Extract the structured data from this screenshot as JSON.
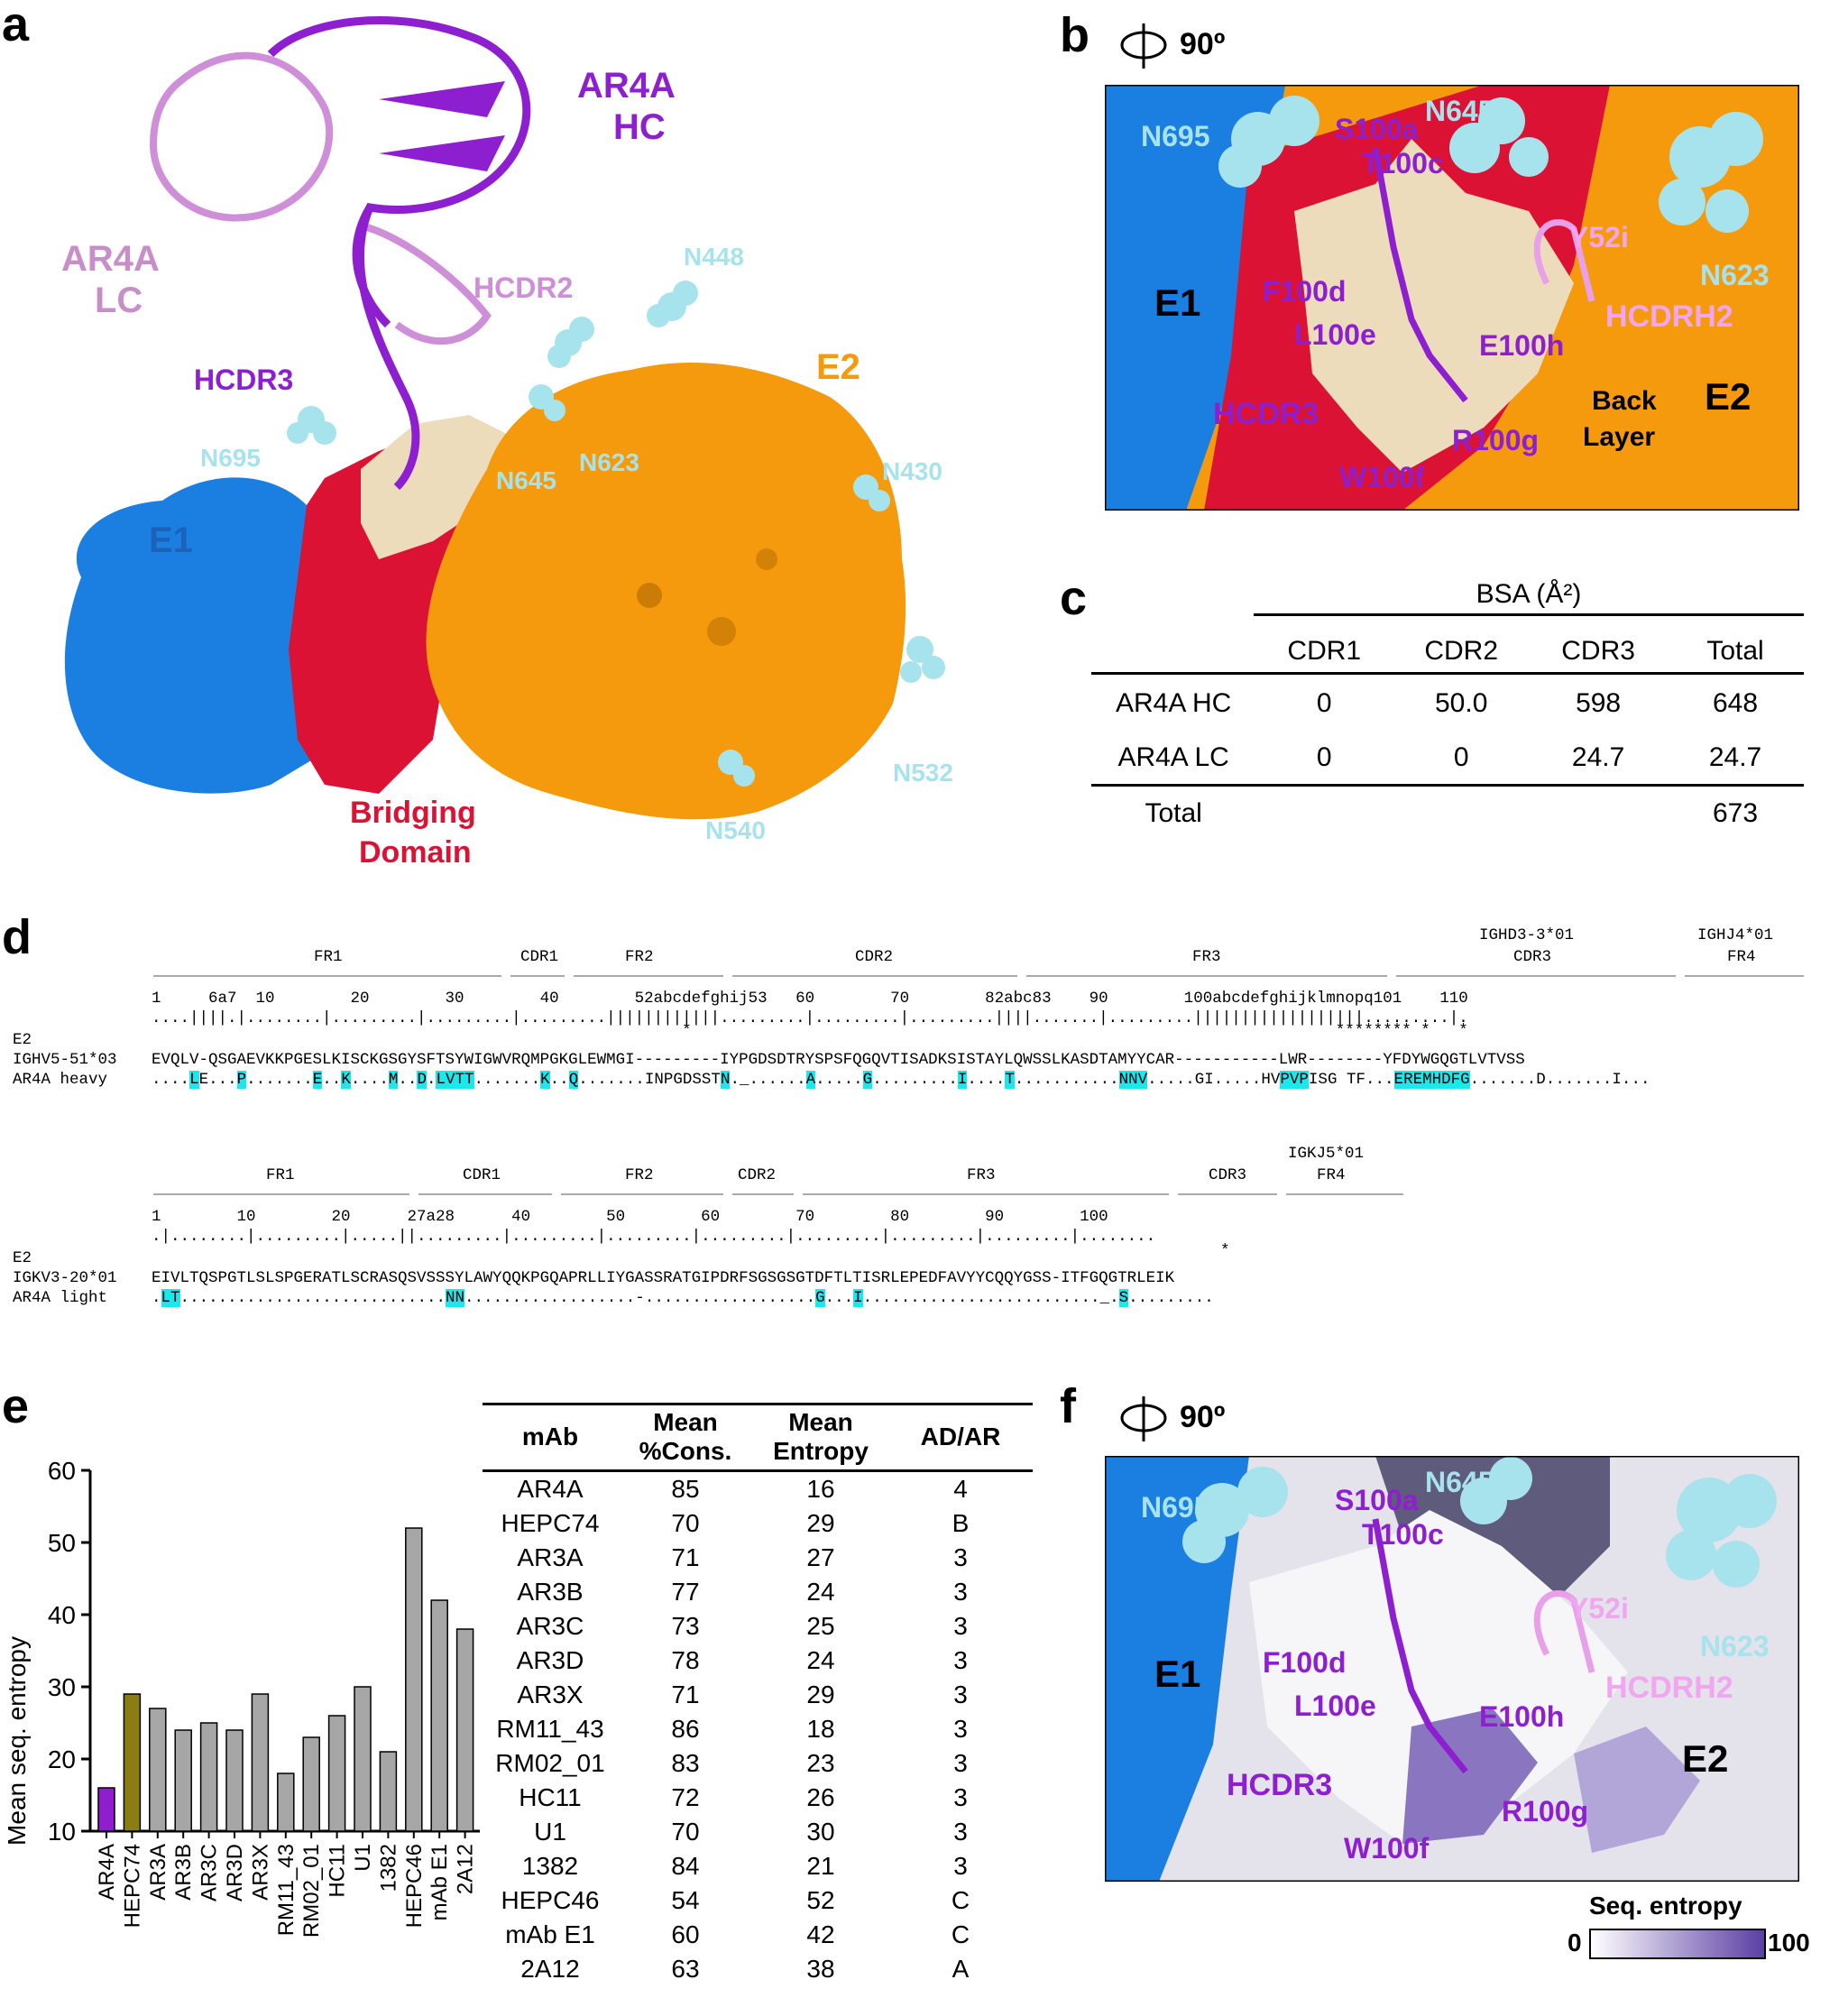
{
  "panels": {
    "a": "a",
    "b": "b",
    "c": "c",
    "d": "d",
    "e": "e",
    "f": "f"
  },
  "panel_a": {
    "labels": {
      "ar4a_hc": "AR4A\nHC",
      "ar4a_lc": "AR4A\nLC",
      "hcdr2": "HCDR2",
      "hcdr3": "HCDR3",
      "n448": "N448",
      "e2": "E2",
      "n695": "N695",
      "n645": "N645",
      "n623": "N623",
      "n430": "N430",
      "e1": "E1",
      "bridging": "Bridging\nDomain",
      "n532": "N532",
      "n540": "N540"
    }
  },
  "panel_b": {
    "rotation": "90º",
    "labels": {
      "n695": "N695",
      "n645": "N645",
      "s100a": "S100a",
      "t100c": "T100c",
      "y52i": "Y52i",
      "n623": "N623",
      "e1": "E1",
      "f100d": "F100d",
      "l100e": "L100e",
      "e100h": "E100h",
      "hcdrh2": "HCDRH2",
      "back_layer": "Back\nLayer",
      "e2": "E2",
      "hcdr3": "HCDR3",
      "r100g": "R100g",
      "w100f": "W100f"
    }
  },
  "panel_c": {
    "group_header": "BSA (Å²)",
    "columns": [
      "",
      "CDR1",
      "CDR2",
      "CDR3",
      "Total"
    ],
    "rows": [
      [
        "AR4A HC",
        "0",
        "50.0",
        "598",
        "648"
      ],
      [
        "AR4A LC",
        "0",
        "0",
        "24.7",
        "24.7"
      ],
      [
        "Total",
        "",
        "",
        "",
        "673"
      ]
    ]
  },
  "panel_d": {
    "heavy": {
      "regions": "                      FR1                   CDR1      FR2          CDR2                   FR3                      CDR3        FR4",
      "ighd": "IGHD3-3*01",
      "ighj": "IGHJ4*01",
      "region_labels": {
        "fr1": "FR1",
        "cdr1": "CDR1",
        "fr2": "FR2",
        "cdr2": "CDR2",
        "fr3": "FR3",
        "cdr3": "CDR3",
        "fr4": "FR4"
      },
      "numbers": "1     6a7  10        20        30        40        52abcdefghij53   60        70        82abc83    90        100abcdefghijklmnopq101    110",
      "dots": "....||||.|........|.........|.........|.........||||||||||||.........|.........|.........||||.......|.........||||||||||||||||||.........|.",
      "marks_e2": "                                                        *                                                                    ******** *   *",
      "row_labels": {
        "e2": "E2",
        "germ": "IGHV5-51*03",
        "ab": "AR4A heavy"
      },
      "germ_seq": "EVQLV-QSGAEVKKPGESLKISCKGSGYSFTSYWIGWVRQMPGKGLEWMGI---------IYPGDSDTRYSPSFQGQVTISADKSISTAYLQWSSLKASDTAMYYCAR-----------LWR--------YFDYWGQGTLVTVSS",
      "ab_seq": "....LE...P.......E..K....M..D.LVTT.......K..Q.......INPGDSSTN._......A.....G.........I....T...........NNV.....GI.....HVPVPISG TF...EREMHDFG.......D.......I..."
    },
    "light": {
      "igkj": "IGKJ5*01",
      "region_labels": {
        "fr1": "FR1",
        "cdr1": "CDR1",
        "fr2": "FR2",
        "cdr2": "CDR2",
        "fr3": "FR3",
        "cdr3": "CDR3",
        "fr4": "FR4"
      },
      "numbers": "1        10        20      27a28      40        50        60        70        80        90        100",
      "dots": ".|........|.........|.....||.........|.........|.........|.........|.........|.........|.........|........",
      "marks_e2": "*",
      "row_labels": {
        "e2": "E2",
        "germ": "IGKV3-20*01",
        "ab": "AR4A light"
      },
      "germ_seq": "EIVLTQSPGTLSLSPGERATLSCRASQSVSSSYLAWYQQKPGQAPRLLIYGASSRATGIPDRFSGSGSGTDFTLTISRLEPEDFAVYYCQQYGSS-ITFGQGTRLEIK",
      "ab_seq": ".LT............................NN..................-..................G...I........................._.S........."
    }
  },
  "panel_e": {
    "chart_data": {
      "type": "bar",
      "ylabel": "Mean seq. entropy",
      "ylim": [
        10,
        60
      ],
      "yticks": [
        10,
        20,
        30,
        40,
        50,
        60
      ],
      "categories": [
        "AR4A",
        "HEPC74",
        "AR3A",
        "AR3B",
        "AR3C",
        "AR3D",
        "AR3X",
        "RM11_43",
        "RM02_01",
        "HC11",
        "U1",
        "1382",
        "HEPC46",
        "mAb E1",
        "2A12"
      ],
      "values": [
        16,
        29,
        27,
        24,
        25,
        24,
        29,
        18,
        23,
        26,
        30,
        21,
        52,
        42,
        38
      ],
      "colors": [
        "#8f1fcc",
        "#8c7d12",
        "#a6a6a6",
        "#a6a6a6",
        "#a6a6a6",
        "#a6a6a6",
        "#a6a6a6",
        "#a6a6a6",
        "#a6a6a6",
        "#a6a6a6",
        "#a6a6a6",
        "#a6a6a6",
        "#a6a6a6",
        "#a6a6a6",
        "#a6a6a6"
      ]
    },
    "table": {
      "columns": [
        "mAb",
        "Mean\n%Cons.",
        "Mean\nEntropy",
        "AD/AR"
      ],
      "rows": [
        [
          "AR4A",
          "85",
          "16",
          "4"
        ],
        [
          "HEPC74",
          "70",
          "29",
          "B"
        ],
        [
          "AR3A",
          "71",
          "27",
          "3"
        ],
        [
          "AR3B",
          "77",
          "24",
          "3"
        ],
        [
          "AR3C",
          "73",
          "25",
          "3"
        ],
        [
          "AR3D",
          "78",
          "24",
          "3"
        ],
        [
          "AR3X",
          "71",
          "29",
          "3"
        ],
        [
          "RM11_43",
          "86",
          "18",
          "3"
        ],
        [
          "RM02_01",
          "83",
          "23",
          "3"
        ],
        [
          "HC11",
          "72",
          "26",
          "3"
        ],
        [
          "U1",
          "70",
          "30",
          "3"
        ],
        [
          "1382",
          "84",
          "21",
          "3"
        ],
        [
          "HEPC46",
          "54",
          "52",
          "C"
        ],
        [
          "mAb E1",
          "60",
          "42",
          "C"
        ],
        [
          "2A12",
          "63",
          "38",
          "A"
        ]
      ]
    }
  },
  "panel_f": {
    "rotation": "90º",
    "labels": {
      "n695": "N695",
      "n645": "N645",
      "s100a": "S100a",
      "t100c": "T100c",
      "y52i": "Y52i",
      "n623": "N623",
      "e1": "E1",
      "f100d": "F100d",
      "l100e": "L100e",
      "e100h": "E100h",
      "hcdrh2": "HCDRH2",
      "e2": "E2",
      "hcdr3": "HCDR3",
      "r100g": "R100g",
      "w100f": "W100f"
    },
    "scale": {
      "title": "Seq. entropy",
      "min": "0",
      "max": "100"
    }
  },
  "colors": {
    "e1": "#1a7fe0",
    "e2": "#f59a0c",
    "bridging": "#dc1234",
    "beige": "#ecdcbb",
    "glycan": "#a7e3ec",
    "hc": "#8d1fd0",
    "lc": "#cf8fd8",
    "entropy_max": "#5b3fa4"
  }
}
